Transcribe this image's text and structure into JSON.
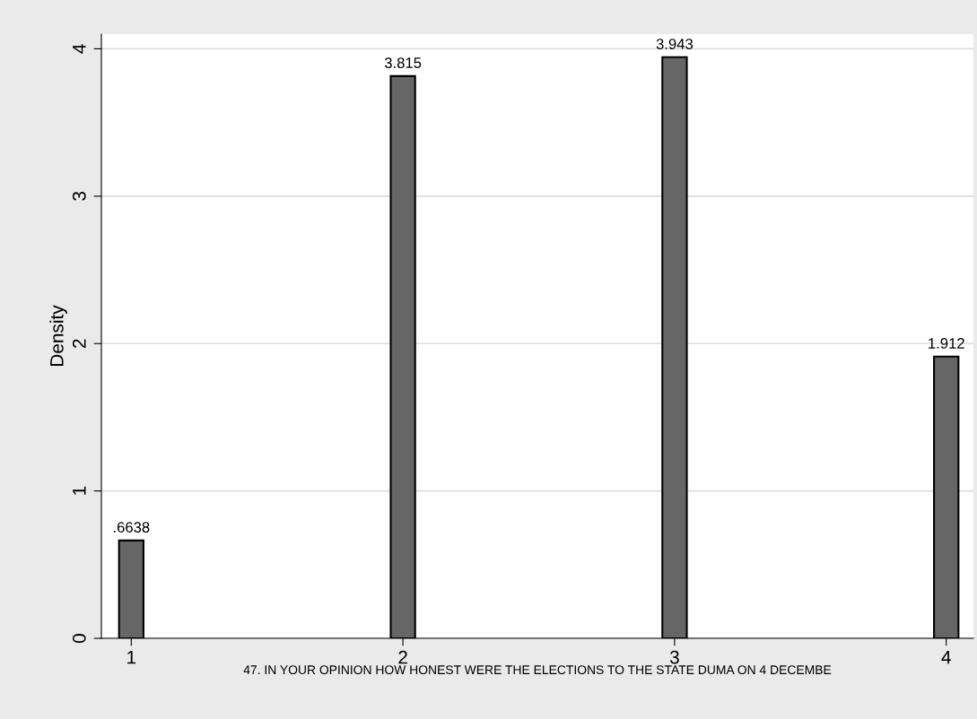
{
  "chart_data": {
    "type": "bar",
    "xlabel": "47. IN YOUR OPINION HOW HONEST WERE THE ELECTIONS TO THE STATE DUMA ON 4 DECEMBE",
    "ylabel": "Density",
    "x": [
      1,
      2,
      3,
      4
    ],
    "values": [
      0.6638,
      3.815,
      3.943,
      1.912
    ],
    "value_labels": [
      ".6638",
      "3.815",
      "3.943",
      "1.912"
    ],
    "color": "#666666",
    "xlim": [
      0.89,
      4.1
    ],
    "xticks": [
      1,
      2,
      3,
      4
    ],
    "ylim": [
      0,
      4.1
    ],
    "yticks": [
      0,
      1,
      2,
      3,
      4
    ],
    "grid": "y"
  }
}
